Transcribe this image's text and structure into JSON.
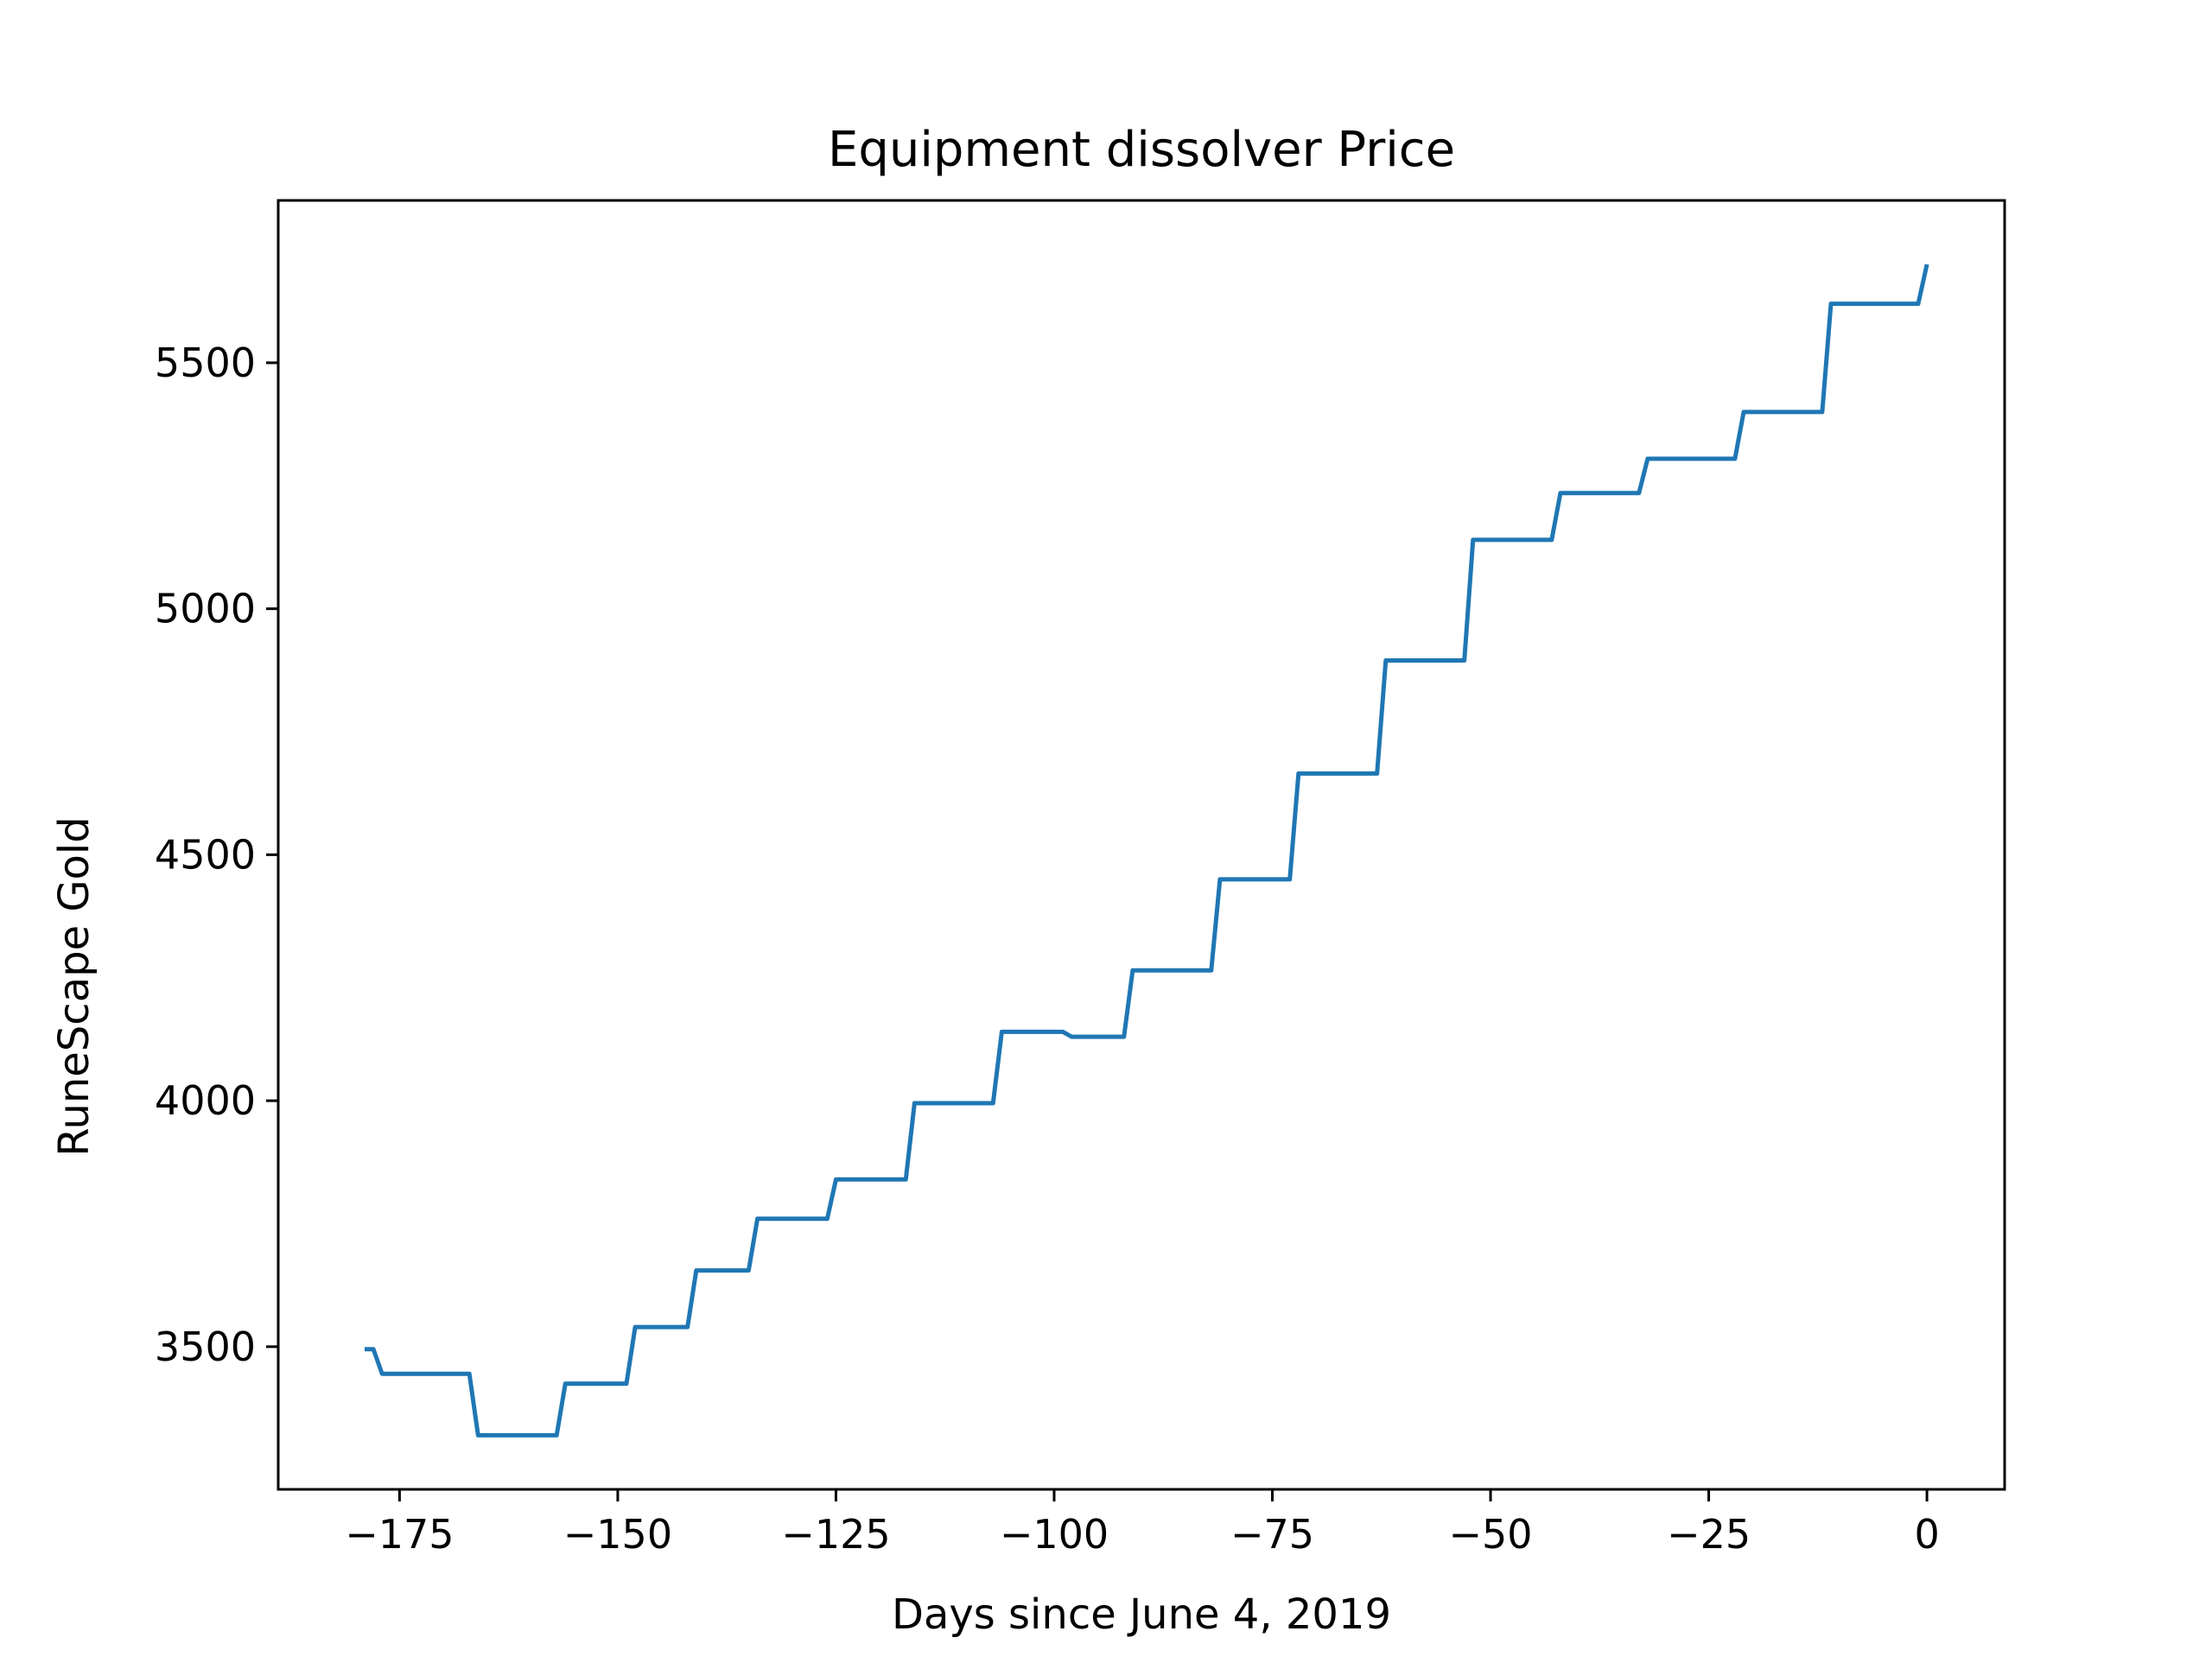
{
  "chart_data": {
    "type": "line",
    "title": "Equipment dissolver Price",
    "xlabel": "Days since June 4, 2019",
    "ylabel": "RuneScape Gold",
    "xlim": [
      -188.9,
      8.9
    ],
    "ylim": [
      3210,
      5830
    ],
    "xticks": [
      -175,
      -150,
      -125,
      -100,
      -75,
      -50,
      -25,
      0
    ],
    "yticks": [
      3500,
      4000,
      4500,
      5000,
      5500
    ],
    "grid": false,
    "colors": {
      "line": "#1f77b4",
      "axes": "#000000",
      "background": "#ffffff"
    },
    "series": [
      {
        "x": [
          -179,
          -178,
          -177,
          -176,
          -167,
          -166,
          -157,
          -156,
          -149,
          -148,
          -142,
          -141,
          -135,
          -134,
          -126,
          -125,
          -117,
          -116,
          -107,
          -106,
          -99,
          -98,
          -92,
          -91,
          -82,
          -81,
          -73,
          -72,
          -63,
          -62,
          -53,
          -52,
          -43,
          -42,
          -33,
          -32,
          -22,
          -21,
          -12,
          -11,
          -1,
          0
        ],
        "y": [
          3495,
          3495,
          3445,
          3445,
          3445,
          3320,
          3320,
          3425,
          3425,
          3540,
          3540,
          3655,
          3655,
          3760,
          3760,
          3840,
          3840,
          3995,
          3995,
          4140,
          4140,
          4130,
          4130,
          4265,
          4265,
          4450,
          4450,
          4665,
          4665,
          4895,
          4895,
          5140,
          5140,
          5235,
          5235,
          5305,
          5305,
          5400,
          5400,
          5620,
          5620,
          5700
        ]
      }
    ]
  }
}
